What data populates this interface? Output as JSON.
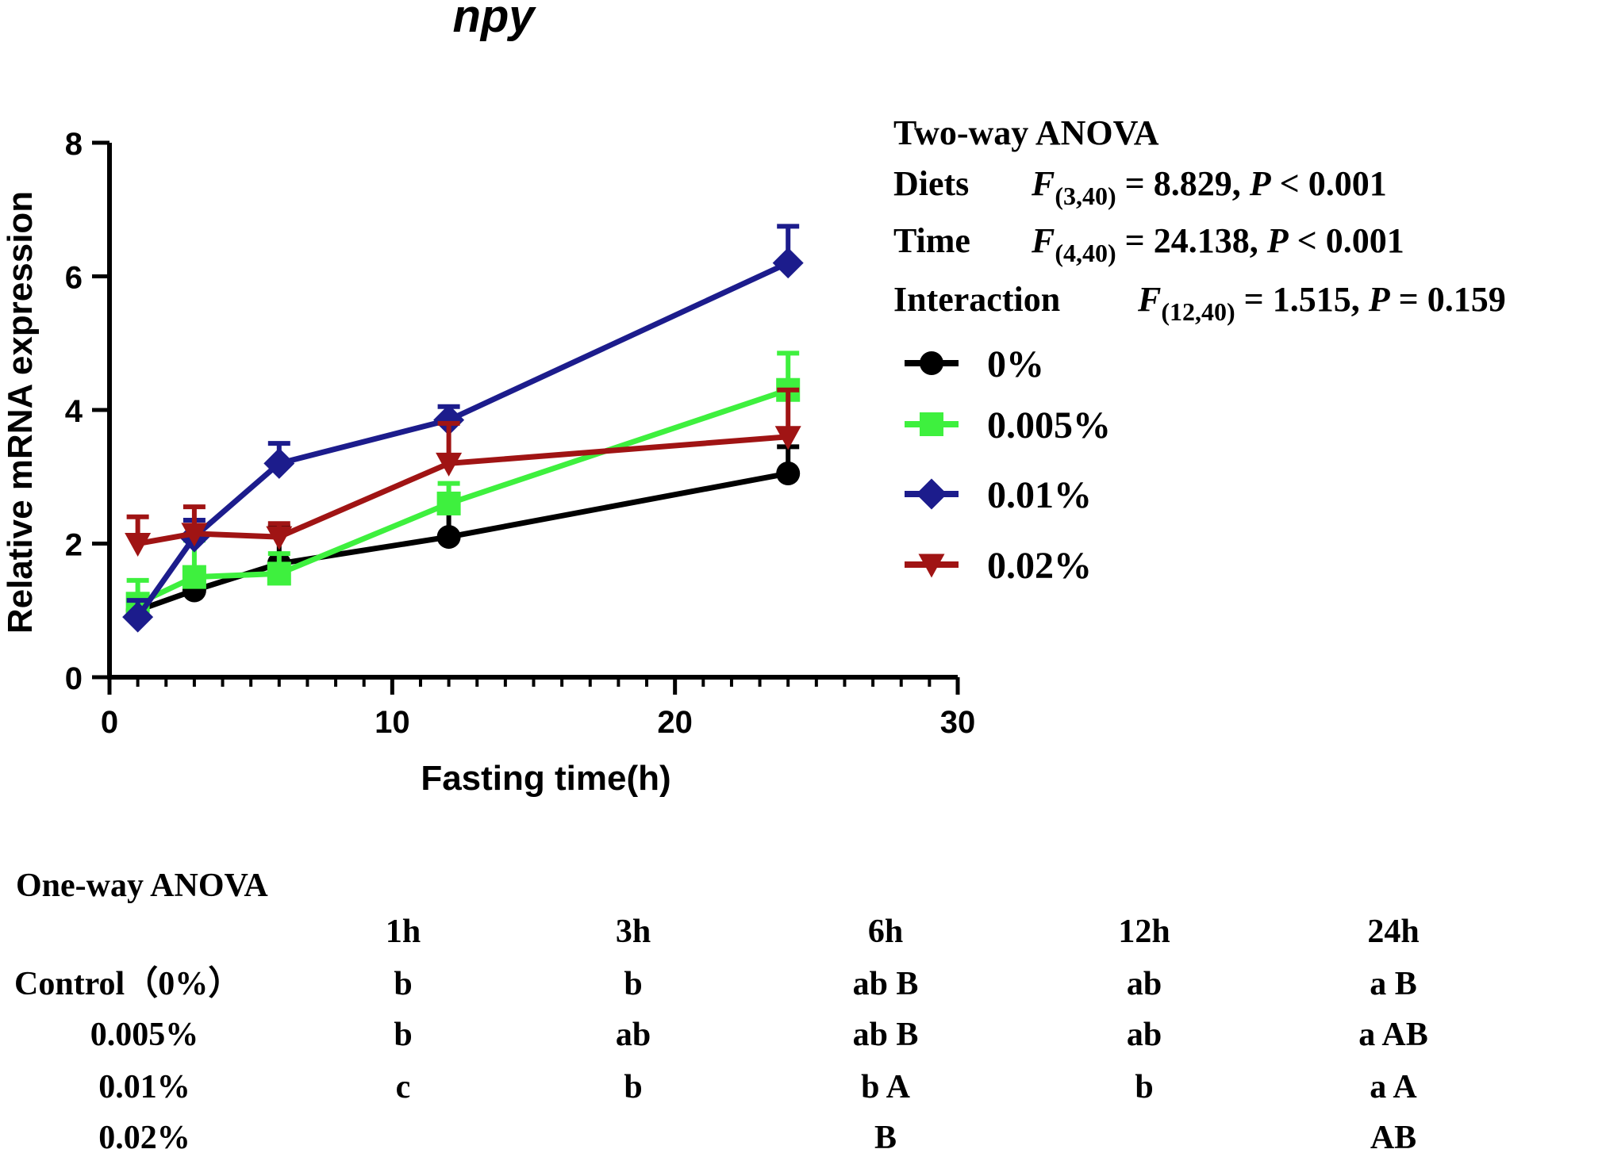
{
  "chart_data": {
    "type": "line",
    "title": "npy",
    "xlabel": "Fasting time(h)",
    "ylabel": "Relative mRNA expression",
    "xlim": [
      0,
      30
    ],
    "ylim": [
      0,
      8
    ],
    "xticks": [
      0,
      10,
      20,
      30
    ],
    "yticks": [
      0,
      2,
      4,
      6,
      8
    ],
    "x": [
      1,
      3,
      6,
      12,
      24
    ],
    "series": [
      {
        "name": "0%",
        "color": "#000000",
        "marker": "circle",
        "values": [
          1.0,
          1.3,
          1.7,
          2.1,
          3.05
        ],
        "errors": [
          0.1,
          0.1,
          0.55,
          0.45,
          0.4
        ]
      },
      {
        "name": "0.005%",
        "color": "#3ef03e",
        "marker": "square",
        "values": [
          1.1,
          1.5,
          1.55,
          2.6,
          4.3
        ],
        "errors": [
          0.35,
          0.55,
          0.3,
          0.3,
          0.55
        ]
      },
      {
        "name": "0.01%",
        "color": "#1c1c8c",
        "marker": "diamond",
        "values": [
          0.9,
          2.1,
          3.2,
          3.85,
          6.2
        ],
        "errors": [
          0.25,
          0.25,
          0.3,
          0.2,
          0.55
        ]
      },
      {
        "name": "0.02%",
        "color": "#a01414",
        "marker": "triangle-down",
        "values": [
          2.0,
          2.15,
          2.1,
          3.2,
          3.6
        ],
        "errors": [
          0.4,
          0.4,
          0.2,
          0.6,
          0.7
        ]
      }
    ],
    "legend_position": "right"
  },
  "two_way_anova": {
    "heading": "Two-way ANOVA",
    "rows": [
      {
        "factor": "Diets",
        "f": "F",
        "df": "(3,40)",
        "stat": " = 8.829, ",
        "p": "P",
        "pval": " < 0.001"
      },
      {
        "factor": "Time",
        "f": "F",
        "df": "(4,40)",
        "stat": " = 24.138, ",
        "p": "P",
        "pval": " < 0.001"
      },
      {
        "factor": "Interaction",
        "f": "F",
        "df": "(12,40)",
        "stat": " = 1.515, ",
        "p": "P",
        "pval": " = 0.159"
      }
    ]
  },
  "one_way_anova": {
    "heading": "One-way ANOVA",
    "columns": [
      "1h",
      "3h",
      "6h",
      "12h",
      "24h"
    ],
    "rows": [
      {
        "label": "Control（0%）",
        "cells": [
          "b",
          "b",
          "ab B",
          "ab",
          "a B"
        ]
      },
      {
        "label": "0.005%",
        "cells": [
          "b",
          "ab",
          "ab B",
          "ab",
          "a AB"
        ]
      },
      {
        "label": "0.01%",
        "cells": [
          "c",
          "b",
          "b A",
          "b",
          "a A"
        ]
      },
      {
        "label": "0.02%",
        "cells": [
          "",
          "",
          "B",
          "",
          "AB"
        ]
      }
    ]
  }
}
